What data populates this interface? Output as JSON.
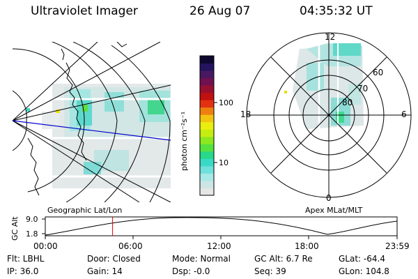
{
  "header": {
    "instrument": "Ultraviolet Imager",
    "date": "26 Aug 07",
    "time": "04:35:32 UT"
  },
  "colorbar": {
    "unit_label": "photon cm⁻²s⁻¹",
    "tick_100": "100",
    "tick_10": "10",
    "colors": [
      "#e6e6e6",
      "#cde5e5",
      "#a8e8e6",
      "#6fe0dc",
      "#3ad9c6",
      "#27d88a",
      "#55e23f",
      "#8ce820",
      "#c4ee10",
      "#eaee10",
      "#f2c410",
      "#ee8010",
      "#e23010",
      "#c01010",
      "#981030",
      "#701050",
      "#481860",
      "#241460",
      "#100830"
    ]
  },
  "left_map": {
    "caption": "Geographic Lat/Lon"
  },
  "polar_map": {
    "caption": "Apex MLat/MLT",
    "mlt_labels": {
      "top": "12",
      "left": "18",
      "right": "6",
      "bottom": "0"
    },
    "lat_labels": [
      "60",
      "70",
      "80"
    ]
  },
  "timeline": {
    "ylabel": "GC Alt",
    "y_top": "9.0",
    "y_bottom": "1.8",
    "ticks": [
      "00:00",
      "06:00",
      "12:00",
      "18:00",
      "23:59"
    ],
    "marker_time_hours": 4.59
  },
  "status": {
    "filter": "Flt: LBHL",
    "ip": "IP: 36.0",
    "door": "Door: Closed",
    "gain": "Gain: 14",
    "mode": "Mode: Normal",
    "dsp": "Dsp:   -0.0",
    "gc_alt": "GC Alt: 6.7 Re",
    "seq": "Seq: 39",
    "glat": "GLat: -64.4",
    "glon": "GLon: 104.8"
  }
}
